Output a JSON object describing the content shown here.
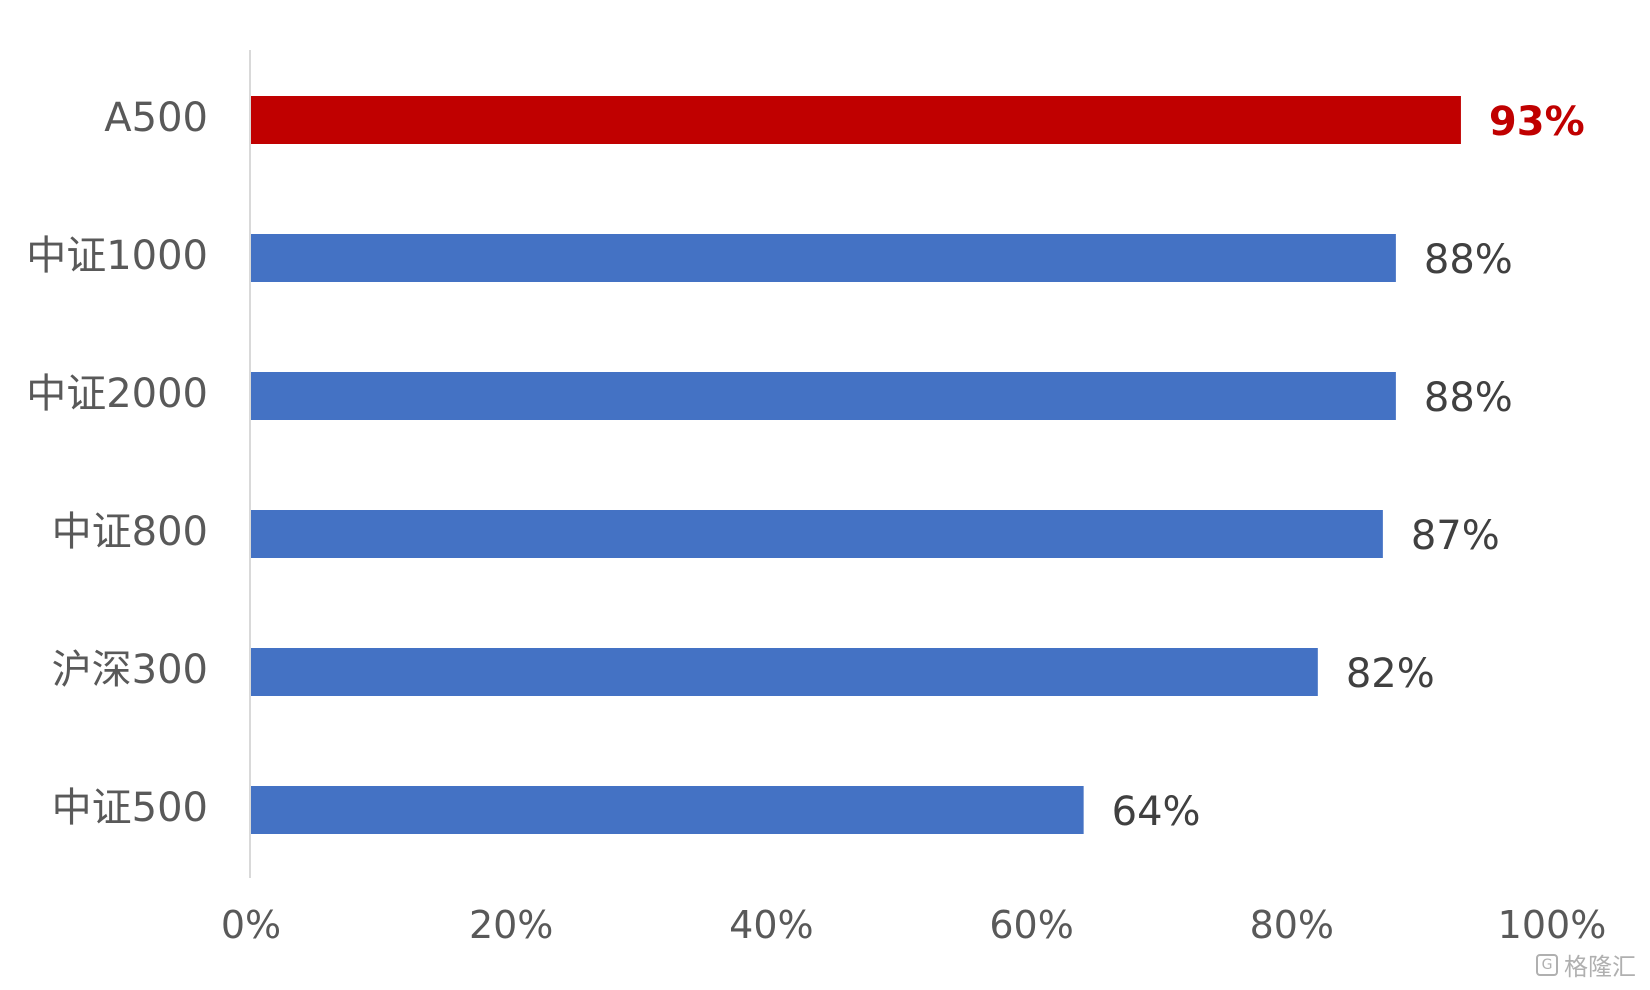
{
  "chart_data": {
    "type": "bar",
    "orientation": "horizontal",
    "categories": [
      "A500",
      "中证1000",
      "中证2000",
      "中证800",
      "沪深300",
      "中证500"
    ],
    "values": [
      0.93,
      0.88,
      0.88,
      0.87,
      0.82,
      0.64
    ],
    "data_labels": [
      "93%",
      "88%",
      "88%",
      "87%",
      "82%",
      "64%"
    ],
    "highlight_index": 0,
    "x_ticks": [
      "0%",
      "20%",
      "40%",
      "60%",
      "80%",
      "100%"
    ],
    "xlim": [
      0,
      1
    ],
    "grid": false,
    "legend": "none",
    "colors": {
      "default": "#4472c4",
      "highlight": "#c00000"
    }
  },
  "watermark": {
    "icon": "gelonghui-logo-icon",
    "text": "格隆汇"
  }
}
